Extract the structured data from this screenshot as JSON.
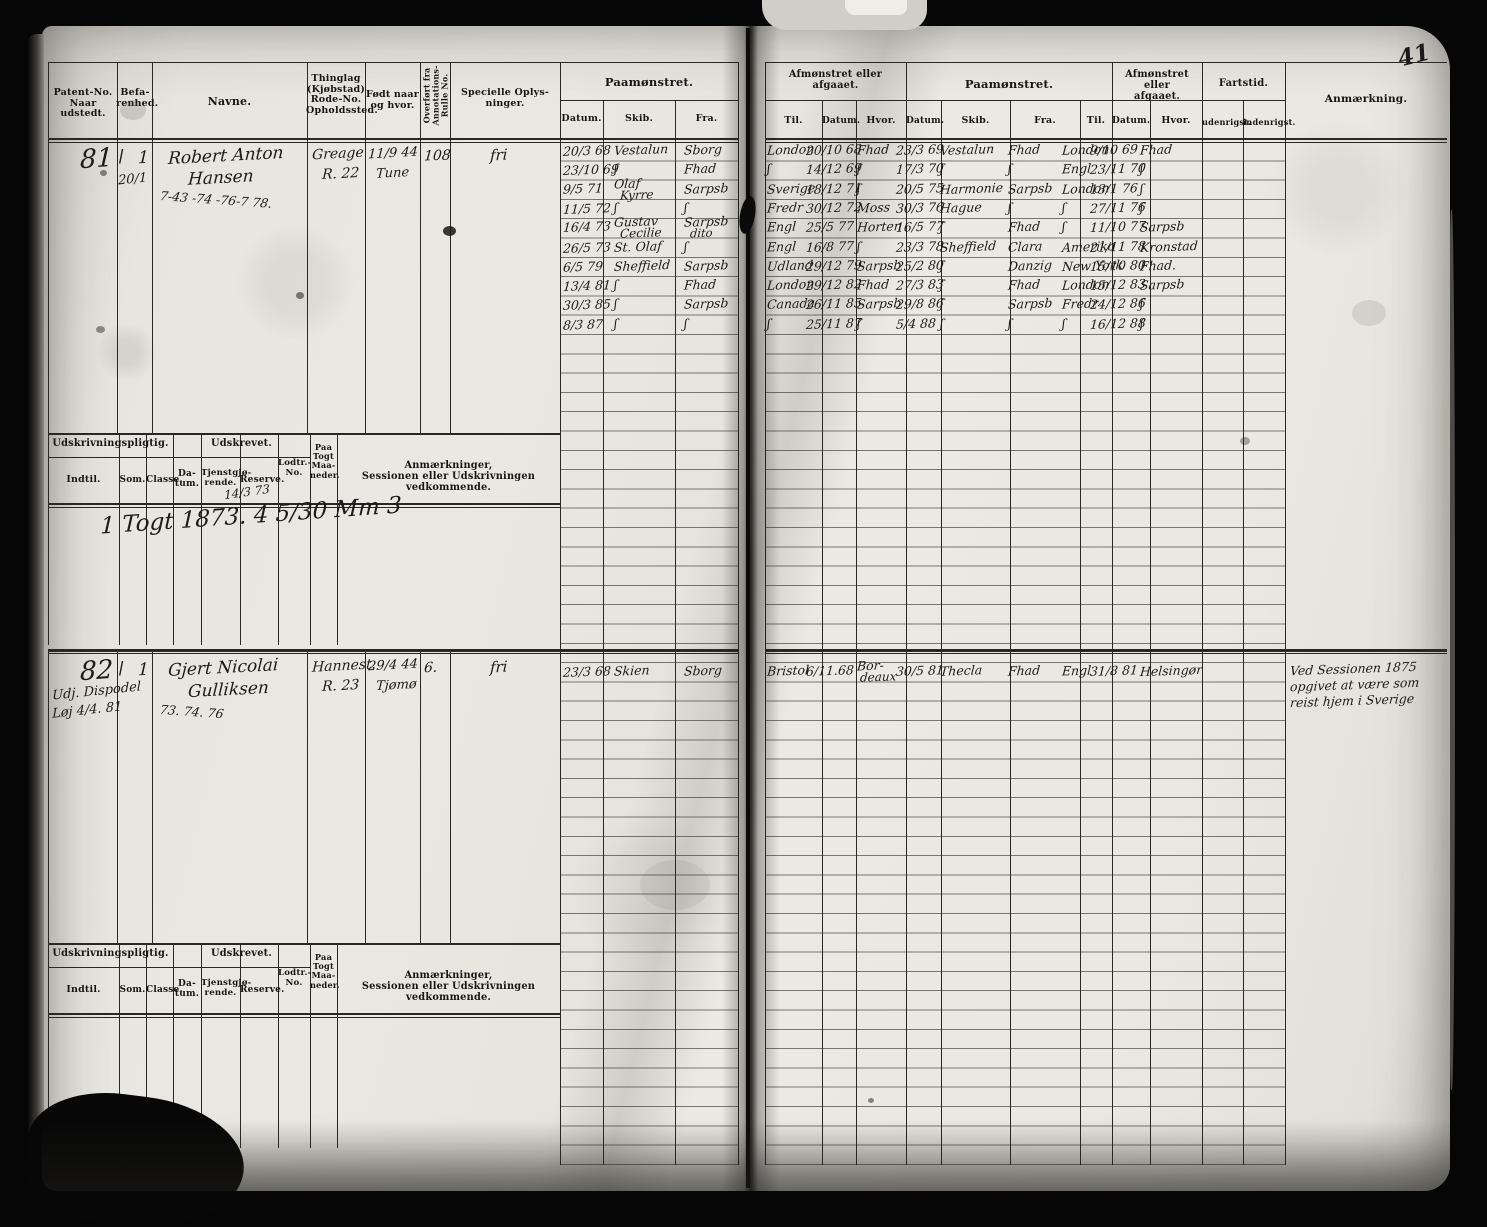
{
  "page_number": "41",
  "colors": {
    "paper": "#e8e6e0",
    "ink": "#1d1b19",
    "grid": "#2a2824",
    "background": "#060606"
  },
  "left_header": {
    "patent": [
      "Patent-No.",
      "Naar udstedt."
    ],
    "befarenhed": [
      "Befa-",
      "renhed."
    ],
    "navne": "Navne.",
    "thinglag": [
      "Thinglag",
      "(Kjøbstad)",
      "Rode-No.",
      "Opholdssted."
    ],
    "fodt": [
      "Født naar",
      "og hvor."
    ],
    "overfort": [
      "Overført fra",
      "Annotations-",
      "Rulle No."
    ],
    "specielle": [
      "Specielle Oplys-",
      "ninger."
    ],
    "paamonstret": "Paamønstret.",
    "datum": "Datum.",
    "skib": "Skib.",
    "fra": "Fra."
  },
  "right_header": {
    "afmonstret": [
      "Afmønstret eller",
      "afgaaet."
    ],
    "paamonstret": "Paamønstret.",
    "fartstid": "Fartstid.",
    "anmaerkning": "Anmærkning.",
    "til": "Til.",
    "datum": "Datum.",
    "hvor": "Hvor.",
    "skib": "Skib.",
    "fra": "Fra.",
    "udenrigst": "udenrigst.",
    "indenrigst": "indenrigst."
  },
  "subblock_header": {
    "udskrivningspligtig": "Udskrivningspligtig.",
    "udskrevet": "Udskrevet.",
    "indtil": "Indtil.",
    "som": "Som.",
    "classe": "Classe.",
    "datum": [
      "Da-",
      "tum."
    ],
    "tjenst": [
      "Tjenstgjø-",
      "rende."
    ],
    "reserve": "Reserve.",
    "lodtr": [
      "Lodtr.-",
      "No."
    ],
    "paatogt": [
      "Paa",
      "Togt",
      "Maa-",
      "neder."
    ],
    "anm": [
      "Anmærkninger,",
      "Sessionen eller Udskrivningen vedkommende."
    ]
  },
  "entries": [
    {
      "patent_no": "81",
      "check_mark": "\\",
      "befarenhed": "1",
      "margin_scrawl_lines": [
        "20/1"
      ],
      "name_lines": [
        "Robert Anton",
        "Hansen"
      ],
      "name_scrawl": "7-43 -74 -76-7  78.",
      "thinglag_lines": [
        "Greage",
        "R. 22"
      ],
      "born_lines": [
        "11/9 44",
        "Tune"
      ],
      "overfort": "108",
      "specielle": "fri",
      "muster_rows": [
        {
          "d": "20/3 68",
          "s": "Vestalun",
          "f": "Sborg"
        },
        {
          "d": "23/10 69",
          "s": "ʃ",
          "f": "Fhad"
        },
        {
          "d": "9/5 71",
          "s": "Olaf",
          "s2": "Kyrre",
          "f": "Sarpsb"
        },
        {
          "d": "11/5 72",
          "s": "ʃ",
          "f": "ʃ"
        },
        {
          "d": "16/4 73",
          "s": "Gustav",
          "s2": "Cecilie",
          "f": "Sarpsb",
          "f2": "dito"
        },
        {
          "d": "26/5 73",
          "s": "St. Olaf",
          "f": "ʃ"
        },
        {
          "d": "6/5 79",
          "s": "Sheffield",
          "f": "Sarpsb"
        },
        {
          "d": "13/4 81",
          "s": "ʃ",
          "f": "Fhad"
        },
        {
          "d": "30/3 85",
          "s": "ʃ",
          "f": "Sarpsb"
        },
        {
          "d": "8/3 87",
          "s": "ʃ",
          "f": "ʃ"
        }
      ],
      "right_rows": [
        {
          "til": "London",
          "d1": "20/10 68",
          "h1": "Fhad",
          "d2": "23/3 69",
          "s": "Vestalun",
          "f": "Fhad",
          "til2": "London",
          "d3": "9/10 69",
          "h2": "Fhad"
        },
        {
          "til": "ʃ",
          "d1": "14/12 69",
          "h1": "ʃ",
          "d2": "17/3 70",
          "s": "ʃ",
          "f": "ʃ",
          "til2": "Engl",
          "d3": "23/11 70",
          "h2": "ʃ"
        },
        {
          "til": "Sverige",
          "d1": "18/12 71",
          "h1": "ʃ",
          "d2": "20/5 75",
          "s": "Harmonie",
          "f": "Sarpsb",
          "til2": "London",
          "d3": "13/1 76",
          "h2": "ʃ"
        },
        {
          "til": "Fredr",
          "d1": "30/12 72",
          "h1": "Moss",
          "d2": "30/3 76",
          "s": "Hague",
          "f": "ʃ",
          "til2": "ʃ",
          "d3": "27/11 76",
          "h2": "ʃ"
        },
        {
          "til": "Engl",
          "d1": "25/5 77",
          "h1": "Horten",
          "d2": "16/5 77",
          "s": "ʃ",
          "f": "Fhad",
          "til2": "ʃ",
          "d3": "11/10 77",
          "h2": "Sarpsb"
        },
        {
          "til": "Engl",
          "d1": "16/8 77",
          "h1": "ʃ",
          "d2": "23/3 78",
          "s": "Sheffield",
          "f": "Clara",
          "til2": "Amerika",
          "d3": "21/11 78",
          "h2": "Kronstad"
        },
        {
          "til": "Udland",
          "d1": "29/12 79",
          "h1": "Sarpsb",
          "d2": "25/2 80",
          "s": "ʃ",
          "f": "Danzig",
          "til2": "New York",
          "d3": "15/10 80",
          "h2": "Fhad."
        },
        {
          "til": "London",
          "d1": "29/12 82",
          "h1": "Fhad",
          "d2": "27/3 83",
          "s": "ʃ",
          "f": "Fhad",
          "til2": "London",
          "d3": "15/12 83",
          "h2": "Sarpsb"
        },
        {
          "til": "Canada",
          "d1": "26/11 85",
          "h1": "Sarpsb",
          "d2": "29/8 86",
          "s": "ʃ",
          "f": "Sarpsb",
          "til2": "Fredr",
          "d3": "24/12 86",
          "h2": "ʃ"
        },
        {
          "til": "ʃ",
          "d1": "25/11 87",
          "h1": "ʃ",
          "d2": "5/4 88",
          "s": "ʃ",
          "f": "ʃ",
          "til2": "ʃ",
          "d3": "16/12 88",
          "h2": "ʃ"
        }
      ],
      "udskrevet_note_small": "14/3 73",
      "udskrevet_note": "1 Togt 1873. 4 5/30 Mm 3",
      "anm_lines": []
    },
    {
      "patent_no": "82",
      "check_mark": "\\",
      "befarenhed": "1",
      "margin_scrawl_lines": [
        "Udj. Dispodel",
        "Løj 4/4. 81"
      ],
      "name_lines": [
        "Gjert Nicolai",
        "Gulliksen"
      ],
      "name_scrawl": "73. 74. 76",
      "thinglag_lines": [
        "Hannest.",
        "R. 23"
      ],
      "born_lines": [
        "29/4 44",
        "Tjømø"
      ],
      "overfort": "6.",
      "specielle": "fri",
      "muster_rows": [
        {
          "d": "23/3 68",
          "s": "Skien",
          "f": "Sborg"
        }
      ],
      "right_rows": [
        {
          "til": "Bristol",
          "d1": "6/11.68",
          "h1": "Bor-",
          "h1b": "deaux",
          "d2": "30/5 81",
          "s": "Thecla",
          "f": "Fhad",
          "til2": "Engl",
          "d3": "31/8 81",
          "h2": "Helsingør"
        }
      ],
      "udskrevet_note_small": "",
      "udskrevet_note": "",
      "anm_lines": [
        "Ved Sessionen 1875",
        "opgivet at være som",
        "reist hjem i Sverige"
      ]
    }
  ]
}
